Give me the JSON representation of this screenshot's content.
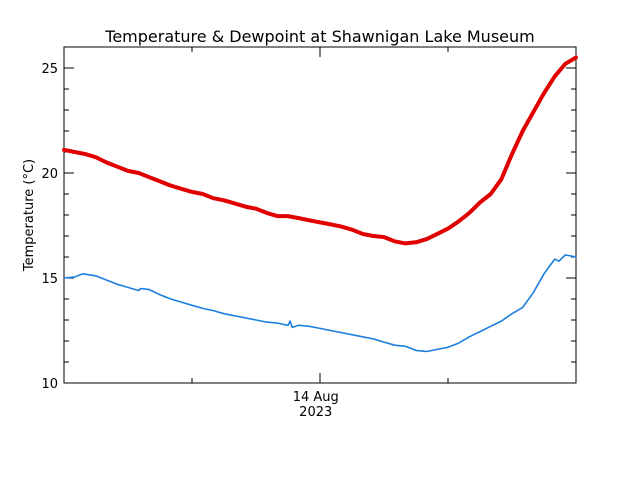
{
  "chart_data": {
    "type": "line",
    "title": "Temperature & Dewpoint at Shawnigan Lake Museum",
    "xlabel": "",
    "ylabel": "Temperature (°C)",
    "x_unit": "hours since start of plotted period",
    "xlim": [
      0,
      24
    ],
    "ylim": [
      10,
      26
    ],
    "y_ticks": [
      10,
      15,
      20,
      25
    ],
    "x_tick_label": {
      "x": 11.8,
      "line1": "14 Aug",
      "line2": "2023"
    },
    "grid": false,
    "legend": "none",
    "series": [
      {
        "color": "#e00000",
        "x": [
          0,
          0.5,
          1,
          1.5,
          2,
          2.5,
          3,
          3.5,
          4,
          4.5,
          5,
          5.5,
          6,
          6.5,
          7,
          7.5,
          8,
          8.5,
          9,
          9.5,
          10,
          10.5,
          11,
          11.5,
          12,
          12.5,
          13,
          13.5,
          14,
          14.5,
          15,
          15.5,
          16,
          16.5,
          17,
          17.5,
          18,
          18.5,
          19,
          19.5,
          20,
          20.5,
          21,
          21.5,
          22,
          22.5,
          23,
          23.5,
          24
        ],
        "values": [
          21.1,
          21.0,
          20.9,
          20.75,
          20.5,
          20.3,
          20.1,
          20.0,
          19.8,
          19.6,
          19.4,
          19.25,
          19.1,
          19.0,
          18.8,
          18.7,
          18.55,
          18.4,
          18.3,
          18.1,
          17.95,
          17.95,
          17.85,
          17.75,
          17.65,
          17.55,
          17.45,
          17.3,
          17.1,
          17.0,
          16.95,
          16.75,
          16.65,
          16.7,
          16.85,
          17.1,
          17.35,
          17.7,
          18.1,
          18.6,
          19.0,
          19.7,
          20.9,
          22.0,
          22.9,
          23.8,
          24.6,
          25.2,
          25.5
        ]
      },
      {
        "color": "#1c7fe0",
        "x": [
          0,
          0.5,
          0.9,
          1.5,
          2,
          2.5,
          3,
          3.5,
          3.6,
          4,
          4.5,
          5,
          5.5,
          6,
          6.5,
          7,
          7.5,
          8,
          8.5,
          9,
          9.5,
          10,
          10.5,
          10.6,
          10.7,
          11,
          11.5,
          12,
          12.5,
          13,
          13.5,
          14,
          14.5,
          15,
          15.5,
          16,
          16.5,
          17,
          17.5,
          18,
          18.5,
          19,
          19.5,
          20,
          20.5,
          21,
          21.5,
          22,
          22.5,
          23,
          23.2,
          23.5,
          24
        ],
        "values": [
          15.0,
          15.05,
          15.2,
          15.1,
          14.9,
          14.7,
          14.55,
          14.4,
          14.5,
          14.45,
          14.2,
          14.0,
          13.85,
          13.7,
          13.55,
          13.45,
          13.3,
          13.2,
          13.1,
          13.0,
          12.9,
          12.85,
          12.75,
          12.95,
          12.65,
          12.75,
          12.7,
          12.6,
          12.5,
          12.4,
          12.3,
          12.2,
          12.1,
          11.95,
          11.8,
          11.75,
          11.55,
          11.5,
          11.6,
          11.7,
          11.9,
          12.2,
          12.45,
          12.7,
          12.95,
          13.3,
          13.6,
          14.3,
          15.2,
          15.9,
          15.8,
          16.1,
          16.0
        ]
      }
    ]
  }
}
